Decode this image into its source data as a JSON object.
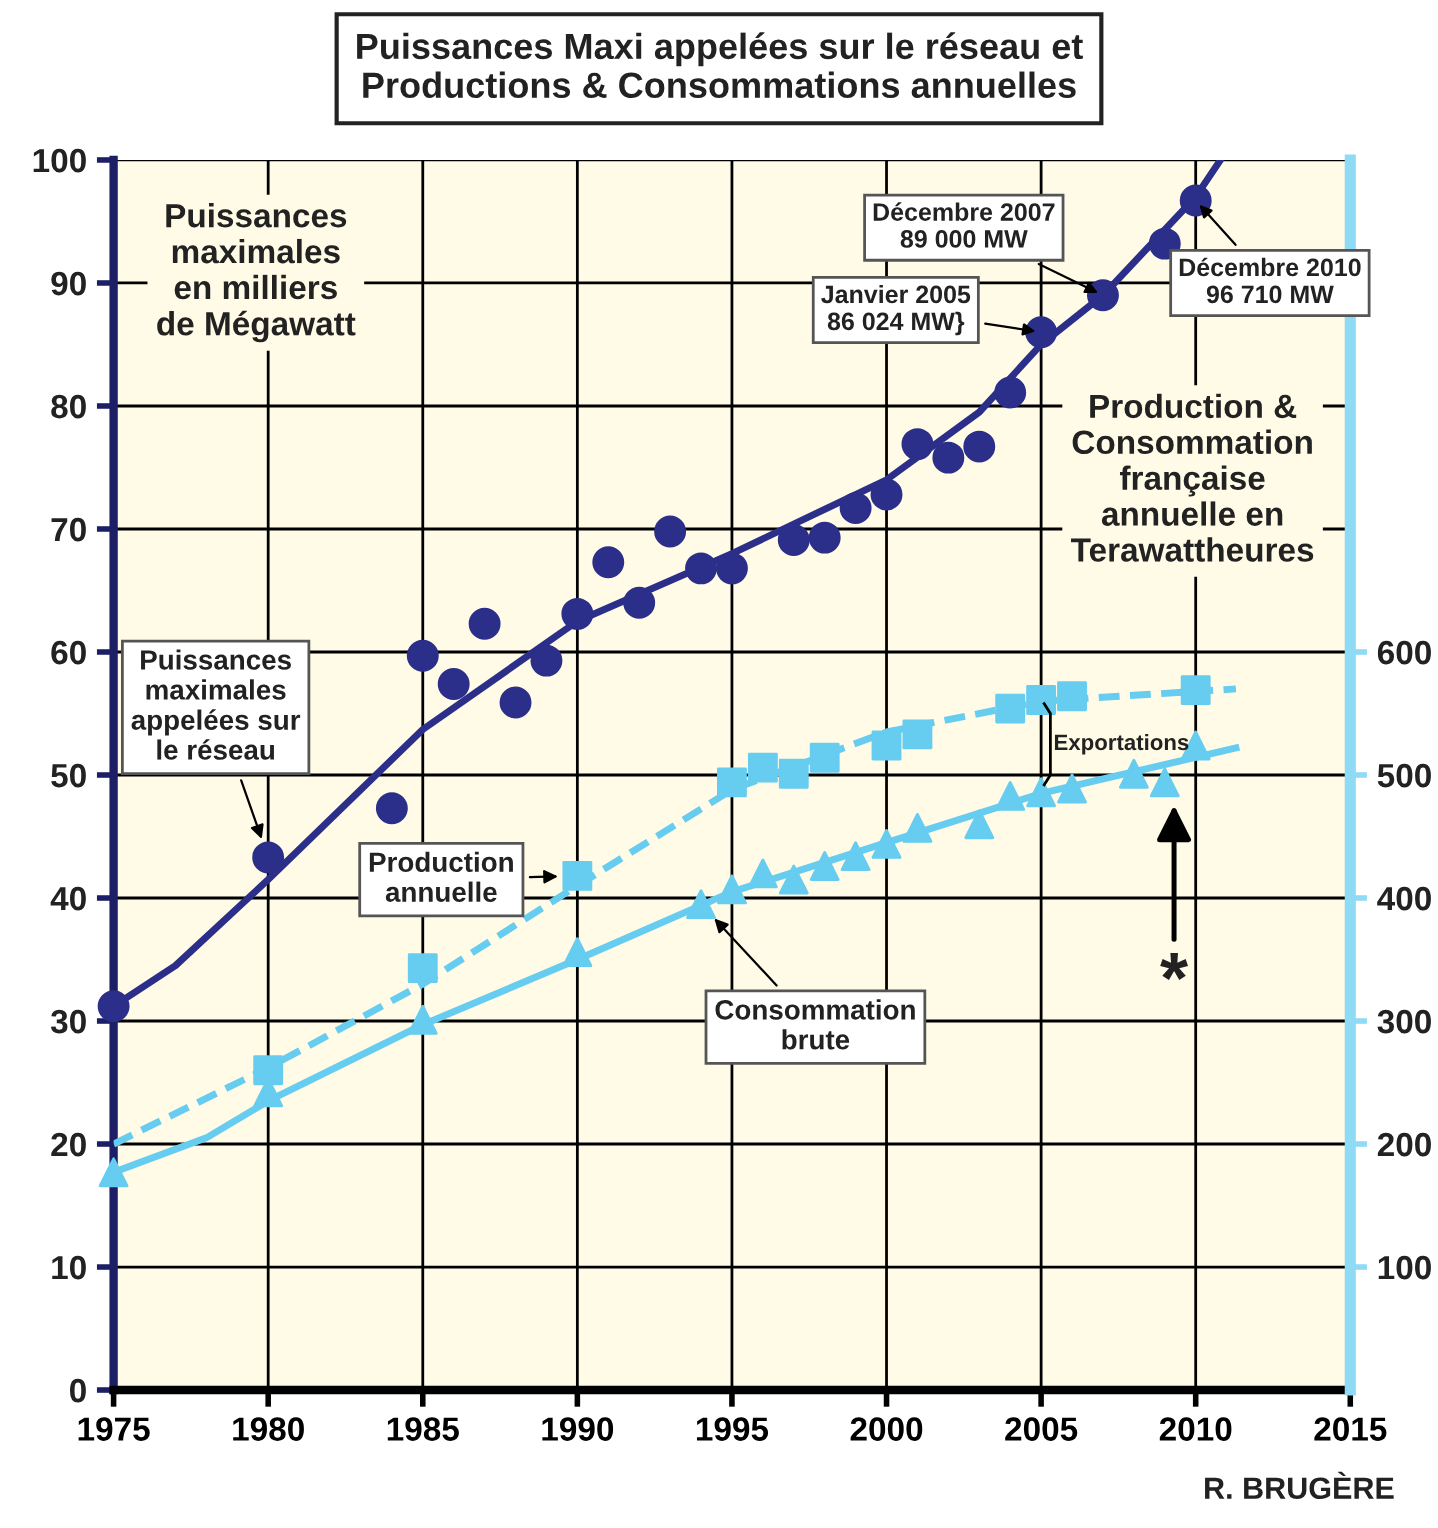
{
  "chart_data": {
    "type": "scatter",
    "title": "Puissances Maxi appelées sur le réseau et\nProductions & Consommations annuelles",
    "ylabel": "Puissances\nmaximales\nen milliers\nde Mégawatt",
    "y2label": "Production &\nConsommation\nfrançaise\nannuelle en\nTerawattheures",
    "xlim": [
      1975,
      2015
    ],
    "xticks": [
      1975,
      1980,
      1985,
      1990,
      1995,
      2000,
      2005,
      2010,
      2015
    ],
    "ylim": [
      0,
      100
    ],
    "yticks": [
      0,
      10,
      20,
      30,
      40,
      50,
      60,
      70,
      80,
      90,
      100
    ],
    "y2lim": [
      0,
      1000
    ],
    "y2ticks": [
      100,
      200,
      300,
      400,
      500,
      600
    ],
    "grid": true,
    "legend": false,
    "series": [
      {
        "name": "Puissances\nmaximales\nappelées sur\nle réseau",
        "color": "#2b2f8a",
        "marker": "circle",
        "x": [
          1975,
          1980,
          1984,
          1985,
          1986,
          1987,
          1988,
          1989,
          1990,
          1991,
          1992,
          1993,
          1994,
          1995,
          1997,
          1998,
          1999,
          2000,
          2001,
          2002,
          2003,
          2004,
          2005,
          2007,
          2009,
          2010
        ],
        "values": [
          31.2,
          43.3,
          47.3,
          59.7,
          57.4,
          62.3,
          55.9,
          59.3,
          63.1,
          67.3,
          64.0,
          69.8,
          66.8,
          66.8,
          69.1,
          69.3,
          71.7,
          72.8,
          76.9,
          75.8,
          76.7,
          81.1,
          86.0,
          89.0,
          93.2,
          96.7
        ]
      },
      {
        "type": "line",
        "color": "#2b2f8a",
        "line_style": "solid",
        "x": [
          1975,
          1977,
          1980,
          1985,
          1990,
          1995,
          2000,
          2003,
          2005,
          2007,
          2010,
          2010.8
        ],
        "values": [
          31.2,
          34.5,
          41.5,
          53.7,
          62.5,
          68,
          74,
          79.5,
          85,
          89,
          97,
          100
        ]
      },
      {
        "name": "Production\nannuelle",
        "color": "#66ccf0",
        "marker": "square",
        "axis": "y2",
        "x": [
          1980,
          1985,
          1990,
          1995,
          1996,
          1997,
          1998,
          2000,
          2001,
          2004,
          2005,
          2006,
          2010
        ],
        "values": [
          260,
          343,
          418,
          494,
          506,
          501,
          514,
          524,
          533,
          554,
          561,
          564,
          569
        ]
      },
      {
        "type": "line",
        "color": "#66ccf0",
        "line_style": "dashed",
        "axis": "y2",
        "x": [
          1975,
          1980,
          1985,
          1990,
          1995,
          2000,
          2005,
          2011.3
        ],
        "values": [
          200,
          262,
          330,
          410,
          488,
          535,
          560,
          570
        ]
      },
      {
        "name": "Consommation\nbrute",
        "color": "#66ccf0",
        "marker": "triangle",
        "axis": "y2",
        "x": [
          1975,
          1980,
          1985,
          1990,
          1994,
          1995,
          1996,
          1997,
          1998,
          1999,
          2000,
          2001,
          2003,
          2004,
          2005,
          2006,
          2008,
          2009,
          2010
        ],
        "values": [
          177,
          242,
          301,
          356,
          395,
          407,
          420,
          415,
          426,
          434,
          444,
          457,
          460,
          483,
          486,
          489,
          501,
          494,
          524
        ]
      },
      {
        "type": "line",
        "color": "#66ccf0",
        "line_style": "solid",
        "axis": "y2",
        "x": [
          1975,
          1978,
          1980,
          1985,
          1990,
          1995,
          2000,
          2005,
          2011.3
        ],
        "values": [
          177,
          205,
          235,
          297,
          350,
          405,
          445,
          485,
          522
        ]
      }
    ],
    "annotations": [
      {
        "text": "Décembre 2007\n89 000 MW",
        "x": 2007,
        "y": 89.0
      },
      {
        "text": "Janvier 2005\n86 024 MW}",
        "x": 2005,
        "y": 86.0
      },
      {
        "text": "Décembre 2010\n96 710 MW",
        "x": 2010,
        "y": 96.7
      },
      "Exportations",
      "*",
      "R. BRUGÈRE"
    ]
  }
}
